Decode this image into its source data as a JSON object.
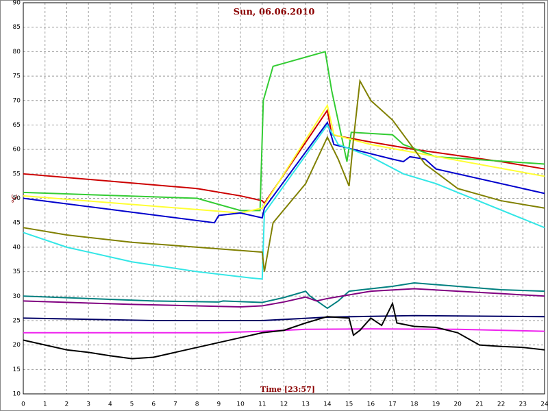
{
  "chart_data": {
    "type": "line",
    "title": "Sun, 06.06.2010",
    "x_label": "Time [23:57]",
    "y_label": "°C",
    "xlim": [
      0,
      24
    ],
    "xticks": [
      0,
      1,
      2,
      3,
      4,
      5,
      6,
      7,
      8,
      9,
      10,
      11,
      12,
      13,
      14,
      15,
      16,
      17,
      18,
      19,
      20,
      21,
      22,
      23,
      24
    ],
    "ylim": [
      10,
      90
    ],
    "yticks": [
      10,
      15,
      20,
      25,
      30,
      35,
      40,
      45,
      50,
      55,
      60,
      65,
      70,
      75,
      80,
      85,
      90
    ],
    "grid": true,
    "series": [
      {
        "color": "#cc0000",
        "x": [
          0,
          8,
          10,
          11,
          11.1,
          14,
          14.2,
          16,
          18,
          22,
          24
        ],
        "values": [
          55,
          52,
          50.5,
          49.5,
          49,
          68,
          63,
          61.5,
          60,
          57.5,
          56
        ]
      },
      {
        "color": "#33cc33",
        "x": [
          0,
          8,
          10,
          10.9,
          11.05,
          11.5,
          13.9,
          14.2,
          14.9,
          15.1,
          17,
          17.5,
          19,
          24
        ],
        "values": [
          51.2,
          50,
          47.5,
          47.5,
          70,
          77,
          80,
          72,
          57.5,
          63.5,
          63,
          61,
          58.5,
          57
        ]
      },
      {
        "color": "#ffff33",
        "x": [
          0,
          10,
          11,
          14,
          14.3,
          16,
          24
        ],
        "values": [
          50.5,
          47,
          48,
          69,
          63,
          61,
          54.5
        ]
      },
      {
        "color": "#0000cc",
        "x": [
          0,
          8.8,
          9,
          10,
          11,
          11.1,
          14,
          14.3,
          17,
          17.5,
          17.8,
          18.5,
          19,
          24
        ],
        "values": [
          50,
          45,
          46.5,
          47,
          46,
          48,
          65.5,
          61,
          58,
          57.5,
          58.5,
          58,
          56,
          51
        ]
      },
      {
        "color": "#33e6e6",
        "x": [
          0,
          2,
          5,
          8,
          10.5,
          11,
          11.1,
          14,
          14.5,
          16,
          17.5,
          19,
          24
        ],
        "values": [
          43,
          40,
          37,
          35,
          33.7,
          33.5,
          47,
          65,
          61,
          58.5,
          55,
          53,
          44
        ]
      },
      {
        "color": "#808000",
        "x": [
          0,
          2,
          5,
          8,
          11,
          11.1,
          11.5,
          13,
          14,
          14.5,
          15,
          15.2,
          15.5,
          16,
          17,
          18.5,
          20,
          22,
          24
        ],
        "values": [
          44,
          42.5,
          41,
          40,
          39,
          35,
          45,
          53,
          62.5,
          58,
          52.5,
          62,
          74,
          70,
          66,
          57,
          52,
          49.5,
          48
        ]
      },
      {
        "color": "#008080",
        "x": [
          0,
          6,
          9,
          9.2,
          11,
          12,
          13,
          13.2,
          14,
          14.5,
          15,
          17,
          18,
          20,
          22,
          24
        ],
        "values": [
          30,
          29,
          28.8,
          29,
          28.7,
          29.7,
          31,
          30,
          27.5,
          29,
          31,
          32,
          32.7,
          32,
          31.3,
          31
        ]
      },
      {
        "color": "#800080",
        "x": [
          0,
          5,
          10,
          11,
          12,
          13,
          13.5,
          14,
          16,
          18,
          20,
          22,
          24
        ],
        "values": [
          29,
          28.3,
          27.8,
          28,
          28.8,
          29.8,
          29,
          29.5,
          31,
          31.5,
          31,
          30.5,
          30
        ]
      },
      {
        "color": "#000066",
        "x": [
          0,
          6,
          11,
          14,
          18,
          24
        ],
        "values": [
          25.5,
          25,
          25,
          25.7,
          26,
          25.8
        ]
      },
      {
        "color": "#ee22ee",
        "x": [
          0,
          9,
          11,
          13,
          16,
          20,
          24
        ],
        "values": [
          22.5,
          22.5,
          22.8,
          23.2,
          23.3,
          23.2,
          22.8
        ]
      },
      {
        "color": "#000000",
        "x": [
          0,
          2,
          3,
          4,
          5,
          6,
          7,
          8,
          9,
          10,
          11,
          12,
          13,
          14,
          15,
          15.2,
          15.5,
          16,
          16.5,
          17,
          17.2,
          18,
          19,
          20,
          21,
          22,
          23,
          24
        ],
        "values": [
          21,
          19,
          18.5,
          17.8,
          17.2,
          17.5,
          18.5,
          19.5,
          20.5,
          21.5,
          22.5,
          23,
          24.5,
          25.8,
          25.5,
          22,
          23,
          25.5,
          24,
          28.5,
          24.5,
          23.8,
          23.6,
          22.5,
          20,
          19.7,
          19.5,
          19
        ]
      }
    ]
  }
}
